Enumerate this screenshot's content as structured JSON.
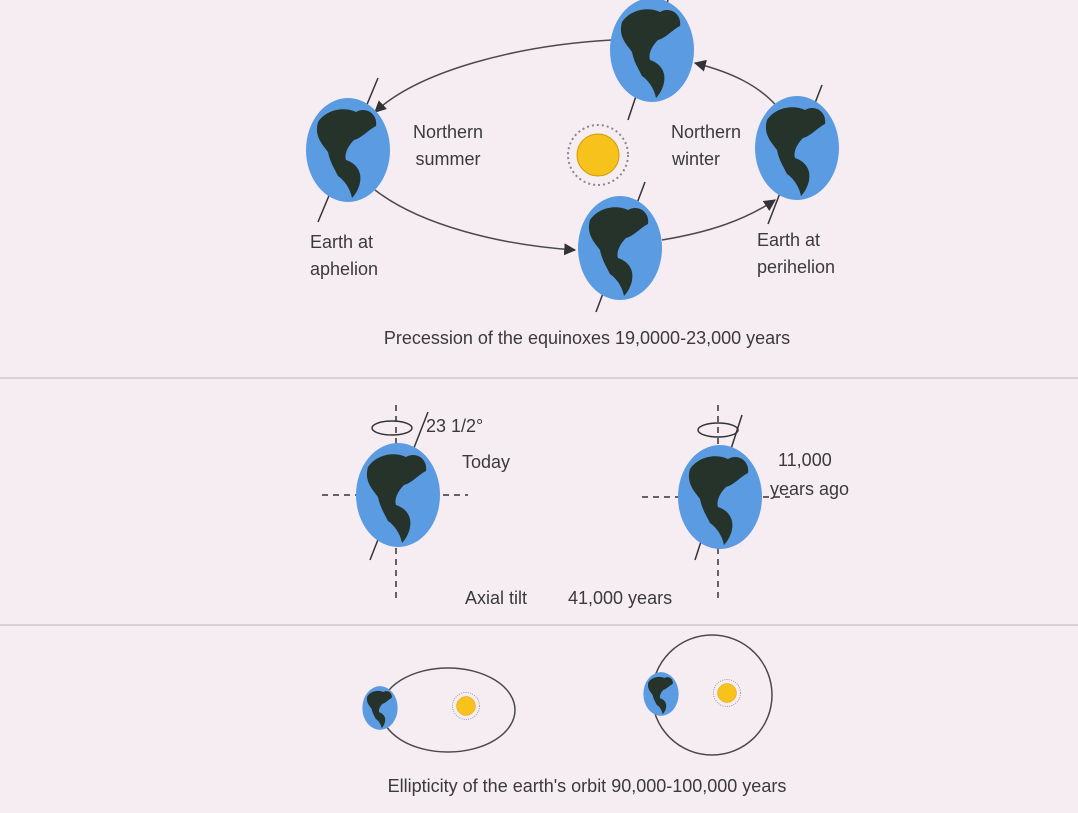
{
  "precession": {
    "left_label": [
      "Northern",
      "summer"
    ],
    "right_label": [
      "Northern",
      "winter"
    ],
    "aphelion": [
      "Earth at",
      "aphelion"
    ],
    "perihelion": [
      "Earth at",
      "perihelion"
    ],
    "caption": "Precession of the equinoxes 19,0000-23,000 years"
  },
  "axial_tilt": {
    "angle": "23 1/2°",
    "today": "Today",
    "past": [
      "11,000",
      "years ago"
    ],
    "caption": [
      "Axial tilt",
      "41,000 years"
    ]
  },
  "ellipticity": {
    "caption": "Ellipticity of the earth's orbit 90,000-100,000 years"
  }
}
